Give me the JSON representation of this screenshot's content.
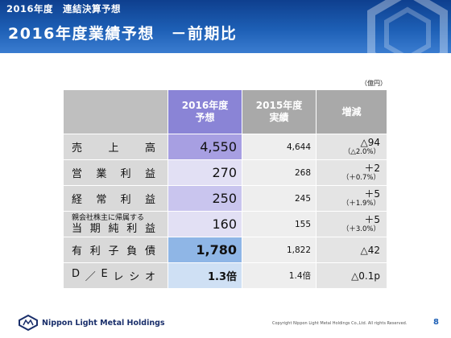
{
  "header": {
    "subtitle": "2016年度　連結決算予想",
    "title": "2016年度業績予想　－前期比"
  },
  "unit_note": "（億円）",
  "table": {
    "headers": [
      "",
      "2016年度\n予想",
      "2015年度\n実績",
      "増減"
    ],
    "rows": [
      {
        "item": [
          "売",
          "上",
          "高"
        ],
        "plan": "4,550",
        "actual": "4,644",
        "change": "△94",
        "change_pct": "（△2.0%）"
      },
      {
        "item": [
          "営",
          "業",
          "利",
          "益"
        ],
        "plan": "270",
        "actual": "268",
        "change": "＋2",
        "change_pct": "（＋0.7%）"
      },
      {
        "item": [
          "経",
          "常",
          "利",
          "益"
        ],
        "plan": "250",
        "actual": "245",
        "change": "＋5",
        "change_pct": "（＋1.9%）"
      },
      {
        "item_small": "親会社株主に帰属する",
        "item": [
          "当",
          "期",
          "純",
          "利",
          "益"
        ],
        "plan": "160",
        "actual": "155",
        "change": "＋5",
        "change_pct": "（＋3.0%）"
      },
      {
        "item": [
          "有",
          "利",
          "子",
          "負",
          "債"
        ],
        "plan": "1,780",
        "actual": "1,822",
        "change": "△42",
        "change_pct": ""
      },
      {
        "item": [
          "D",
          "／",
          "E",
          "レ",
          "シ",
          "オ"
        ],
        "plan": "1.3倍",
        "actual": "1.4倍",
        "change": "△0.1p",
        "change_pct": ""
      }
    ],
    "plan_colors": [
      "#a79fe2",
      "#e2e0f4",
      "#c9c5ee",
      "#e2e0f4",
      "#8fb6e6",
      "#cfe0f4"
    ]
  },
  "footer": {
    "company": "Nippon Light Metal Holdings",
    "copyright": "Copyright Nippon Light Metal Holdings Co.,Ltd. All rights Reserved.",
    "page": "8"
  }
}
